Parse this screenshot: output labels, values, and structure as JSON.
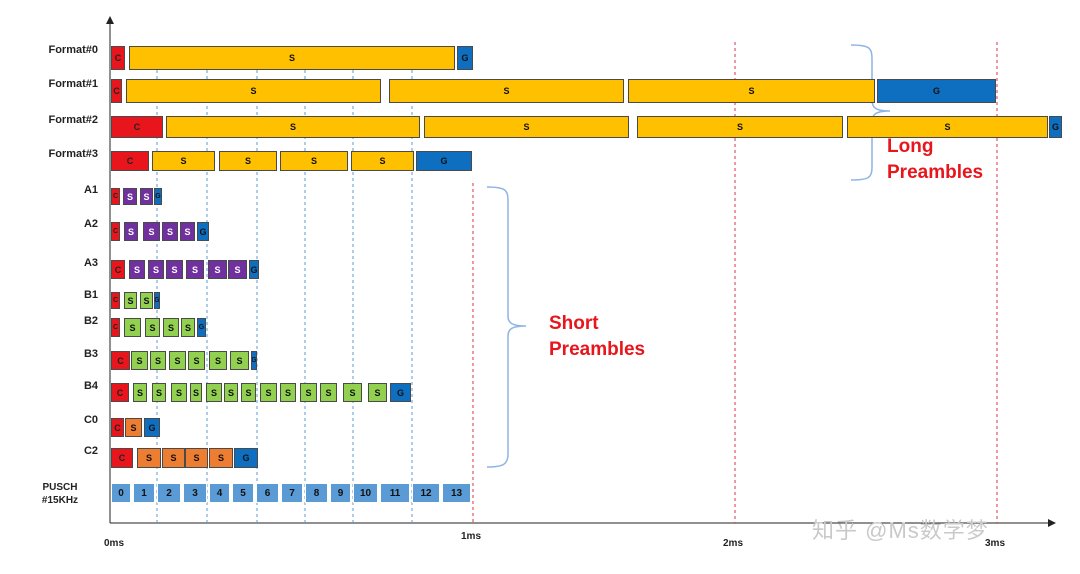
{
  "formats": [
    {
      "id": "f0",
      "label": "Format#0"
    },
    {
      "id": "f1",
      "label": "Format#1"
    },
    {
      "id": "f2",
      "label": "Format#2"
    },
    {
      "id": "f3",
      "label": "Format#3"
    },
    {
      "id": "a1",
      "label": "A1"
    },
    {
      "id": "a2",
      "label": "A2"
    },
    {
      "id": "a3",
      "label": "A3"
    },
    {
      "id": "b1",
      "label": "B1"
    },
    {
      "id": "b2",
      "label": "B2"
    },
    {
      "id": "b3",
      "label": "B3"
    },
    {
      "id": "b4",
      "label": "B4"
    },
    {
      "id": "c0",
      "label": "C0"
    },
    {
      "id": "c2",
      "label": "C2"
    },
    {
      "id": "pusch",
      "label": "PUSCH\n#15KHz"
    }
  ],
  "time_axis": {
    "ticks": [
      "0ms",
      "1ms",
      "2ms",
      "3ms"
    ]
  },
  "block_letters": {
    "cp": "C",
    "seq": "S",
    "guard": "G"
  },
  "pusch_symbols": [
    "0",
    "1",
    "2",
    "3",
    "4",
    "5",
    "6",
    "7",
    "8",
    "9",
    "10",
    "11",
    "12",
    "13"
  ],
  "annotations": {
    "long": "Long\nPreambles",
    "short": "Short\nPreambles"
  },
  "watermark": "知乎 @Ms数学梦",
  "colors": {
    "cp": "#e8161c",
    "long_seq": "#ffc000",
    "guard": "#0e6fc1",
    "a_seq": "#7030a0",
    "b_seq": "#92d050",
    "c_seq": "#ed7d31",
    "pusch": "#5b9bd5",
    "annotation": "#e8161c",
    "guide_blue": "#5b9bd5",
    "guide_red": "#d9334a"
  }
}
